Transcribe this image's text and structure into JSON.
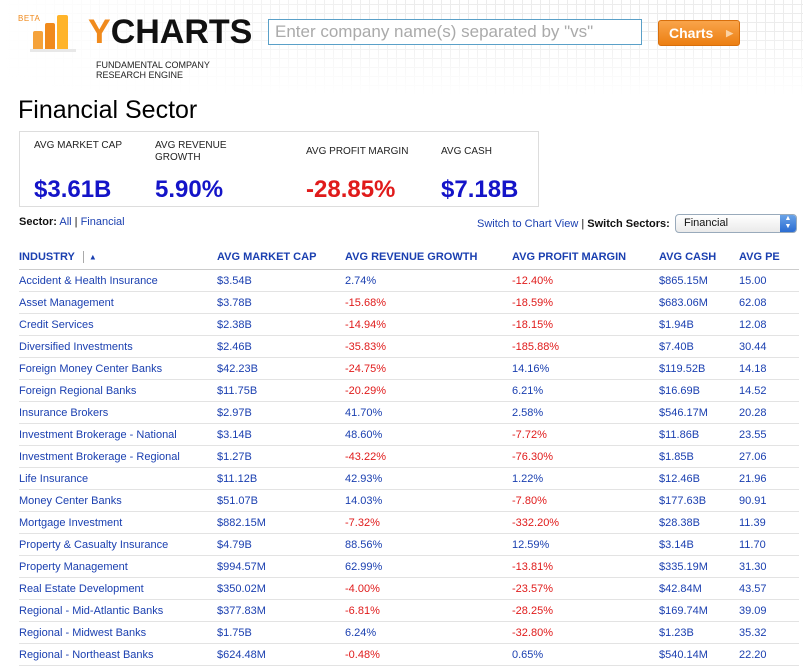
{
  "header": {
    "beta": "BETA",
    "brand_y": "Y",
    "brand_rest": "CHARTS",
    "tagline": "FUNDAMENTAL COMPANY RESEARCH ENGINE",
    "search_placeholder": "Enter company name(s) separated by \"vs\"",
    "charts_button": "Charts"
  },
  "page_title": "Financial Sector",
  "summary": {
    "market_cap_label": "AVG MARKET CAP",
    "market_cap_value": "$3.61B",
    "revenue_growth_label": "AVG REVENUE GROWTH",
    "revenue_growth_value": "5.90%",
    "profit_margin_label": "AVG PROFIT MARGIN",
    "profit_margin_value": "-28.85%",
    "cash_label": "AVG CASH",
    "cash_value": "$7.18B"
  },
  "sector_nav": {
    "label": "Sector:",
    "all": "All",
    "separator": "|",
    "current": "Financial",
    "switch_chart": "Switch to Chart View",
    "switch_sectors_label": "Switch Sectors:",
    "selected_sector": "Financial"
  },
  "table": {
    "columns": [
      "INDUSTRY",
      "AVG MARKET CAP",
      "AVG REVENUE GROWTH",
      "AVG PROFIT MARGIN",
      "AVG CASH",
      "AVG PE"
    ],
    "rows": [
      [
        "Accident & Health Insurance",
        "$3.54B",
        "2.74%",
        "-12.40%",
        "$865.15M",
        "15.00"
      ],
      [
        "Asset Management",
        "$3.78B",
        "-15.68%",
        "-18.59%",
        "$683.06M",
        "62.08"
      ],
      [
        "Credit Services",
        "$2.38B",
        "-14.94%",
        "-18.15%",
        "$1.94B",
        "12.08"
      ],
      [
        "Diversified Investments",
        "$2.46B",
        "-35.83%",
        "-185.88%",
        "$7.40B",
        "30.44"
      ],
      [
        "Foreign Money Center Banks",
        "$42.23B",
        "-24.75%",
        "14.16%",
        "$119.52B",
        "14.18"
      ],
      [
        "Foreign Regional Banks",
        "$11.75B",
        "-20.29%",
        "6.21%",
        "$16.69B",
        "14.52"
      ],
      [
        "Insurance Brokers",
        "$2.97B",
        "41.70%",
        "2.58%",
        "$546.17M",
        "20.28"
      ],
      [
        "Investment Brokerage - National",
        "$3.14B",
        "48.60%",
        "-7.72%",
        "$11.86B",
        "23.55"
      ],
      [
        "Investment Brokerage - Regional",
        "$1.27B",
        "-43.22%",
        "-76.30%",
        "$1.85B",
        "27.06"
      ],
      [
        "Life Insurance",
        "$11.12B",
        "42.93%",
        "1.22%",
        "$12.46B",
        "21.96"
      ],
      [
        "Money Center Banks",
        "$51.07B",
        "14.03%",
        "-7.80%",
        "$177.63B",
        "90.91"
      ],
      [
        "Mortgage Investment",
        "$882.15M",
        "-7.32%",
        "-332.20%",
        "$28.38B",
        "11.39"
      ],
      [
        "Property & Casualty Insurance",
        "$4.79B",
        "88.56%",
        "12.59%",
        "$3.14B",
        "11.70"
      ],
      [
        "Property Management",
        "$994.57M",
        "62.99%",
        "-13.81%",
        "$335.19M",
        "31.30"
      ],
      [
        "Real Estate Development",
        "$350.02M",
        "-4.00%",
        "-23.57%",
        "$42.84M",
        "43.57"
      ],
      [
        "Regional - Mid-Atlantic Banks",
        "$377.83M",
        "-6.81%",
        "-28.25%",
        "$169.74M",
        "39.09"
      ],
      [
        "Regional - Midwest Banks",
        "$1.75B",
        "6.24%",
        "-32.80%",
        "$1.23B",
        "35.32"
      ],
      [
        "Regional - Northeast Banks",
        "$624.48M",
        "-0.48%",
        "0.65%",
        "$540.14M",
        "22.20"
      ]
    ]
  },
  "colors": {
    "brand_orange": "#f08a1c",
    "link_blue": "#1a3fb0",
    "positive_blue": "#1414c8",
    "negative_red": "#e01b1b"
  },
  "icons": {
    "logo": "bar-chart-logo-icon",
    "sort": "sort-ascending-icon",
    "select": "select-arrows-icon",
    "button_arrow": "chevron-right-icon"
  }
}
